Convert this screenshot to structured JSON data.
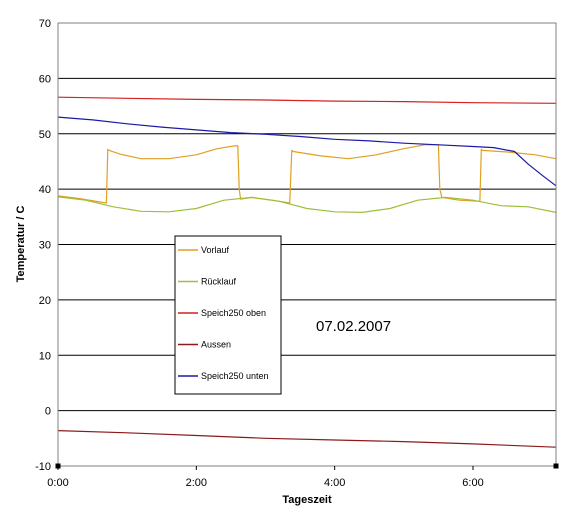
{
  "chart_data": {
    "type": "line",
    "title": "",
    "xlabel": "Tageszeit",
    "ylabel": "Temperatur / C",
    "xlim": [
      0,
      7.2
    ],
    "ylim": [
      -10,
      70
    ],
    "x_ticks": [
      {
        "value": 0,
        "label": "0:00"
      },
      {
        "value": 2,
        "label": "2:00"
      },
      {
        "value": 4,
        "label": "4:00"
      },
      {
        "value": 6,
        "label": "6:00"
      }
    ],
    "y_ticks": [
      -10,
      0,
      10,
      20,
      30,
      40,
      50,
      60,
      70
    ],
    "grid": "horizontal",
    "legend": "left-center inside plot",
    "annotation": "07.02.2007",
    "x_unit": "hours",
    "series": [
      {
        "name": "Vorlauf",
        "color": "#e0a020",
        "x": [
          0,
          0.3,
          0.7,
          0.72,
          0.74,
          0.9,
          1.2,
          1.6,
          2.0,
          2.3,
          2.55,
          2.6,
          2.62,
          2.64,
          2.8,
          3.1,
          3.35,
          3.38,
          3.4,
          3.8,
          4.2,
          4.6,
          5.0,
          5.3,
          5.5,
          5.52,
          5.55,
          5.8,
          6.1,
          6.12,
          6.14,
          6.5,
          6.9,
          7.2
        ],
        "y": [
          38.8,
          38.3,
          37.5,
          47.2,
          47.0,
          46.3,
          45.5,
          45.5,
          46.2,
          47.3,
          47.8,
          47.8,
          40.0,
          38.2,
          38.5,
          38.0,
          37.5,
          47.0,
          46.8,
          46.0,
          45.5,
          46.2,
          47.3,
          48.0,
          48.0,
          40.0,
          38.5,
          38.0,
          37.8,
          47.2,
          47.0,
          46.7,
          46.2,
          45.5
        ]
      },
      {
        "name": "Rücklauf",
        "color": "#9dc03a",
        "x": [
          0,
          0.4,
          0.8,
          1.2,
          1.6,
          2.0,
          2.4,
          2.8,
          3.2,
          3.6,
          4.0,
          4.4,
          4.8,
          5.2,
          5.6,
          6.0,
          6.4,
          6.8,
          7.2
        ],
        "y": [
          38.6,
          38.0,
          36.8,
          36.0,
          35.9,
          36.5,
          38.0,
          38.5,
          37.8,
          36.5,
          35.9,
          35.8,
          36.5,
          38.0,
          38.5,
          38.0,
          37.0,
          36.8,
          35.8
        ]
      },
      {
        "name": "Speich250 oben",
        "color": "#d42020",
        "x": [
          0,
          1,
          2,
          3,
          4,
          5,
          6,
          7.2
        ],
        "y": [
          56.6,
          56.4,
          56.2,
          56.1,
          55.9,
          55.8,
          55.6,
          55.5
        ]
      },
      {
        "name": "Aussen",
        "color": "#8b1a1a",
        "x": [
          0,
          1,
          2,
          3,
          4,
          5,
          6,
          7.2
        ],
        "y": [
          -3.6,
          -4.0,
          -4.5,
          -5.0,
          -5.3,
          -5.6,
          -6.0,
          -6.6
        ]
      },
      {
        "name": "Speich250 unten",
        "color": "#1a1aa8",
        "x": [
          0,
          0.5,
          1.0,
          1.5,
          2.0,
          2.5,
          3.0,
          3.5,
          4.0,
          4.5,
          5.0,
          5.5,
          6.0,
          6.3,
          6.6,
          6.8,
          7.0,
          7.2
        ],
        "y": [
          53.0,
          52.5,
          51.8,
          51.2,
          50.7,
          50.2,
          49.9,
          49.5,
          49.0,
          48.7,
          48.3,
          48.0,
          47.7,
          47.5,
          46.8,
          44.5,
          42.5,
          40.6
        ]
      }
    ]
  }
}
